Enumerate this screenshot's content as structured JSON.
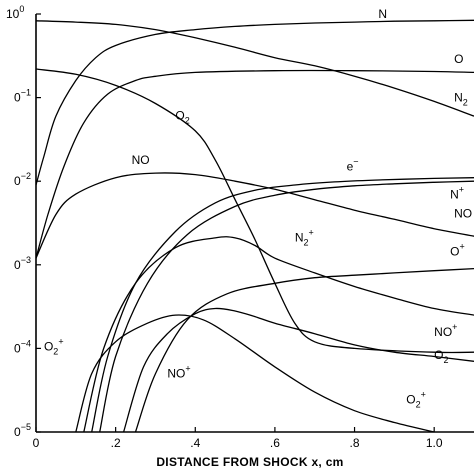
{
  "chart_data": {
    "type": "line",
    "title": "",
    "xlabel": "DISTANCE FROM SHOCK x, cm",
    "ylabel": "",
    "xlim": [
      0,
      1.1
    ],
    "ylim": [
      1e-05,
      1
    ],
    "yscale": "log",
    "grid": false,
    "x_ticks": [
      {
        "value": 0,
        "label": "0"
      },
      {
        "value": 0.2,
        "label": ".2"
      },
      {
        "value": 0.4,
        "label": ".4"
      },
      {
        "value": 0.6,
        "label": ".6"
      },
      {
        "value": 0.8,
        "label": ".8"
      },
      {
        "value": 1.0,
        "label": "1.0"
      }
    ],
    "y_ticks": [
      {
        "value": 1,
        "base": "10",
        "exp": "0"
      },
      {
        "value": 0.1,
        "base": "0",
        "exp": "−1"
      },
      {
        "value": 0.01,
        "base": "0",
        "exp": "−2"
      },
      {
        "value": 0.001,
        "base": "0",
        "exp": "−3"
      },
      {
        "value": 0.0001,
        "base": "0",
        "exp": "−4"
      },
      {
        "value": 1e-05,
        "base": "0",
        "exp": "−5"
      }
    ],
    "series": [
      {
        "name": "N",
        "label": {
          "base": "N",
          "sup": "",
          "sub": "",
          "x": 0.86,
          "y": 0.9
        },
        "points": [
          [
            0,
            0.009
          ],
          [
            0.02,
            0.02
          ],
          [
            0.05,
            0.06
          ],
          [
            0.1,
            0.16
          ],
          [
            0.15,
            0.3
          ],
          [
            0.2,
            0.42
          ],
          [
            0.3,
            0.57
          ],
          [
            0.4,
            0.65
          ],
          [
            0.5,
            0.71
          ],
          [
            0.6,
            0.75
          ],
          [
            0.7,
            0.78
          ],
          [
            0.8,
            0.8
          ],
          [
            0.9,
            0.82
          ],
          [
            1.0,
            0.83
          ],
          [
            1.1,
            0.84
          ]
        ]
      },
      {
        "name": "O",
        "label": {
          "base": "O",
          "sup": "",
          "sub": "",
          "x": 1.05,
          "y": 0.26
        },
        "points": [
          [
            0,
            0.0012
          ],
          [
            0.03,
            0.004
          ],
          [
            0.07,
            0.015
          ],
          [
            0.12,
            0.05
          ],
          [
            0.18,
            0.11
          ],
          [
            0.25,
            0.16
          ],
          [
            0.3,
            0.18
          ],
          [
            0.4,
            0.2
          ],
          [
            0.6,
            0.21
          ],
          [
            0.8,
            0.21
          ],
          [
            1.0,
            0.205
          ],
          [
            1.1,
            0.2
          ]
        ]
      },
      {
        "name": "N2",
        "label": {
          "base": "N",
          "sup": "",
          "sub": "2",
          "x": 1.05,
          "y": 0.09
        },
        "points": [
          [
            0,
            0.83
          ],
          [
            0.1,
            0.8
          ],
          [
            0.2,
            0.75
          ],
          [
            0.3,
            0.65
          ],
          [
            0.4,
            0.52
          ],
          [
            0.5,
            0.4
          ],
          [
            0.6,
            0.3
          ],
          [
            0.7,
            0.24
          ],
          [
            0.8,
            0.18
          ],
          [
            0.9,
            0.13
          ],
          [
            1.0,
            0.09
          ],
          [
            1.1,
            0.06
          ]
        ]
      },
      {
        "name": "O2",
        "label": {
          "base": "O",
          "sup": "",
          "sub": "2",
          "x": 0.35,
          "y": 0.055
        },
        "points": [
          [
            0,
            0.22
          ],
          [
            0.1,
            0.19
          ],
          [
            0.2,
            0.14
          ],
          [
            0.3,
            0.085
          ],
          [
            0.4,
            0.04
          ],
          [
            0.45,
            0.018
          ],
          [
            0.5,
            0.006
          ],
          [
            0.55,
            0.002
          ],
          [
            0.6,
            0.0006
          ],
          [
            0.65,
            0.0002
          ],
          [
            0.7,
            0.00012
          ],
          [
            0.8,
            0.0001
          ],
          [
            1.0,
            9e-05
          ],
          [
            1.1,
            9e-05
          ]
        ]
      },
      {
        "name": "NO",
        "label": {
          "base": "NO",
          "sup": "",
          "sub": "",
          "x": 0.24,
          "y": 0.016
        },
        "points": [
          [
            0,
            0.0012
          ],
          [
            0.05,
            0.004
          ],
          [
            0.1,
            0.007
          ],
          [
            0.2,
            0.011
          ],
          [
            0.3,
            0.0125
          ],
          [
            0.4,
            0.012
          ],
          [
            0.5,
            0.01
          ],
          [
            0.6,
            0.008
          ],
          [
            0.7,
            0.006
          ],
          [
            0.8,
            0.0045
          ],
          [
            0.9,
            0.0035
          ],
          [
            1.0,
            0.0027
          ],
          [
            1.1,
            0.0022
          ]
        ]
      },
      {
        "name": "e-",
        "label": {
          "base": "e",
          "sup": "−",
          "sub": "",
          "x": 0.78,
          "y": 0.0135
        },
        "points": [
          [
            0.14,
            1e-05
          ],
          [
            0.18,
            8e-05
          ],
          [
            0.25,
            0.0006
          ],
          [
            0.35,
            0.0025
          ],
          [
            0.45,
            0.0055
          ],
          [
            0.55,
            0.0078
          ],
          [
            0.65,
            0.009
          ],
          [
            0.75,
            0.0098
          ],
          [
            0.85,
            0.0103
          ],
          [
            1.0,
            0.0108
          ],
          [
            1.1,
            0.011
          ]
        ]
      },
      {
        "name": "N+",
        "label": {
          "base": "N",
          "sup": "+",
          "sub": "",
          "x": 1.04,
          "y": 0.0062
        },
        "points": [
          [
            0.16,
            1e-05
          ],
          [
            0.2,
            8e-05
          ],
          [
            0.28,
            0.0006
          ],
          [
            0.38,
            0.0023
          ],
          [
            0.5,
            0.005
          ],
          [
            0.6,
            0.0068
          ],
          [
            0.7,
            0.008
          ],
          [
            0.8,
            0.0088
          ],
          [
            0.9,
            0.0093
          ],
          [
            1.0,
            0.0097
          ],
          [
            1.1,
            0.01
          ]
        ]
      },
      {
        "name": "N2+",
        "label": {
          "base": "N",
          "sup": "+",
          "sub": "2",
          "x": 0.65,
          "y": 0.0019
        },
        "points": [
          [
            0.12,
            1e-05
          ],
          [
            0.17,
            0.0001
          ],
          [
            0.25,
            0.0006
          ],
          [
            0.35,
            0.0016
          ],
          [
            0.45,
            0.0021
          ],
          [
            0.5,
            0.0021
          ],
          [
            0.55,
            0.0017
          ],
          [
            0.6,
            0.0012
          ],
          [
            0.7,
            0.0008
          ],
          [
            0.8,
            0.00055
          ],
          [
            0.9,
            0.0004
          ],
          [
            1.0,
            0.0003
          ],
          [
            1.1,
            0.00025
          ]
        ]
      },
      {
        "name": "O+",
        "label": {
          "base": "O",
          "sup": "+",
          "sub": "",
          "x": 1.04,
          "y": 0.0013
        },
        "points": [
          [
            0.25,
            1e-05
          ],
          [
            0.3,
            5e-05
          ],
          [
            0.38,
            0.00022
          ],
          [
            0.48,
            0.00045
          ],
          [
            0.6,
            0.0006
          ],
          [
            0.7,
            0.0007
          ],
          [
            0.8,
            0.00075
          ],
          [
            0.9,
            0.0008
          ],
          [
            1.0,
            0.00085
          ],
          [
            1.1,
            0.0009
          ]
        ]
      },
      {
        "name": "NO+",
        "label": {
          "base": "NO",
          "sup": "+",
          "sub": "",
          "x": 1.0,
          "y": 0.00014
        },
        "points": [
          [
            0.22,
            1e-05
          ],
          [
            0.27,
            6e-05
          ],
          [
            0.33,
            0.00015
          ],
          [
            0.4,
            0.00026
          ],
          [
            0.45,
            0.0003
          ],
          [
            0.5,
            0.00028
          ],
          [
            0.55,
            0.00024
          ],
          [
            0.6,
            0.0002
          ],
          [
            0.7,
            0.00015
          ],
          [
            0.8,
            0.00011
          ],
          [
            0.9,
            9e-05
          ],
          [
            1.0,
            8e-05
          ],
          [
            1.1,
            7e-05
          ]
        ]
      },
      {
        "name": "O2+",
        "label": {
          "base": "O",
          "sup": "+",
          "sub": "2",
          "x": 0.93,
          "y": 2.2e-05
        },
        "points": [
          [
            0.1,
            1e-05
          ],
          [
            0.14,
            5e-05
          ],
          [
            0.2,
            0.00012
          ],
          [
            0.28,
            0.0002
          ],
          [
            0.35,
            0.00025
          ],
          [
            0.42,
            0.00022
          ],
          [
            0.5,
            0.00013
          ],
          [
            0.6,
            6e-05
          ],
          [
            0.7,
            3e-05
          ],
          [
            0.8,
            1.8e-05
          ],
          [
            0.9,
            1.3e-05
          ],
          [
            1.0,
            1e-05
          ]
        ]
      }
    ],
    "extra_labels": [
      {
        "base": "NO",
        "sup": "",
        "sub": "",
        "x": 1.05,
        "y": 0.0037
      },
      {
        "base": "O",
        "sup": "",
        "sub": "2",
        "x": 1.0,
        "y": 7.5e-05
      },
      {
        "base": "O",
        "sup": "+",
        "sub": "2",
        "x": 0.02,
        "y": 9.5e-05
      },
      {
        "base": "NO",
        "sup": "+",
        "sub": "",
        "x": 0.33,
        "y": 4.5e-05
      }
    ]
  }
}
